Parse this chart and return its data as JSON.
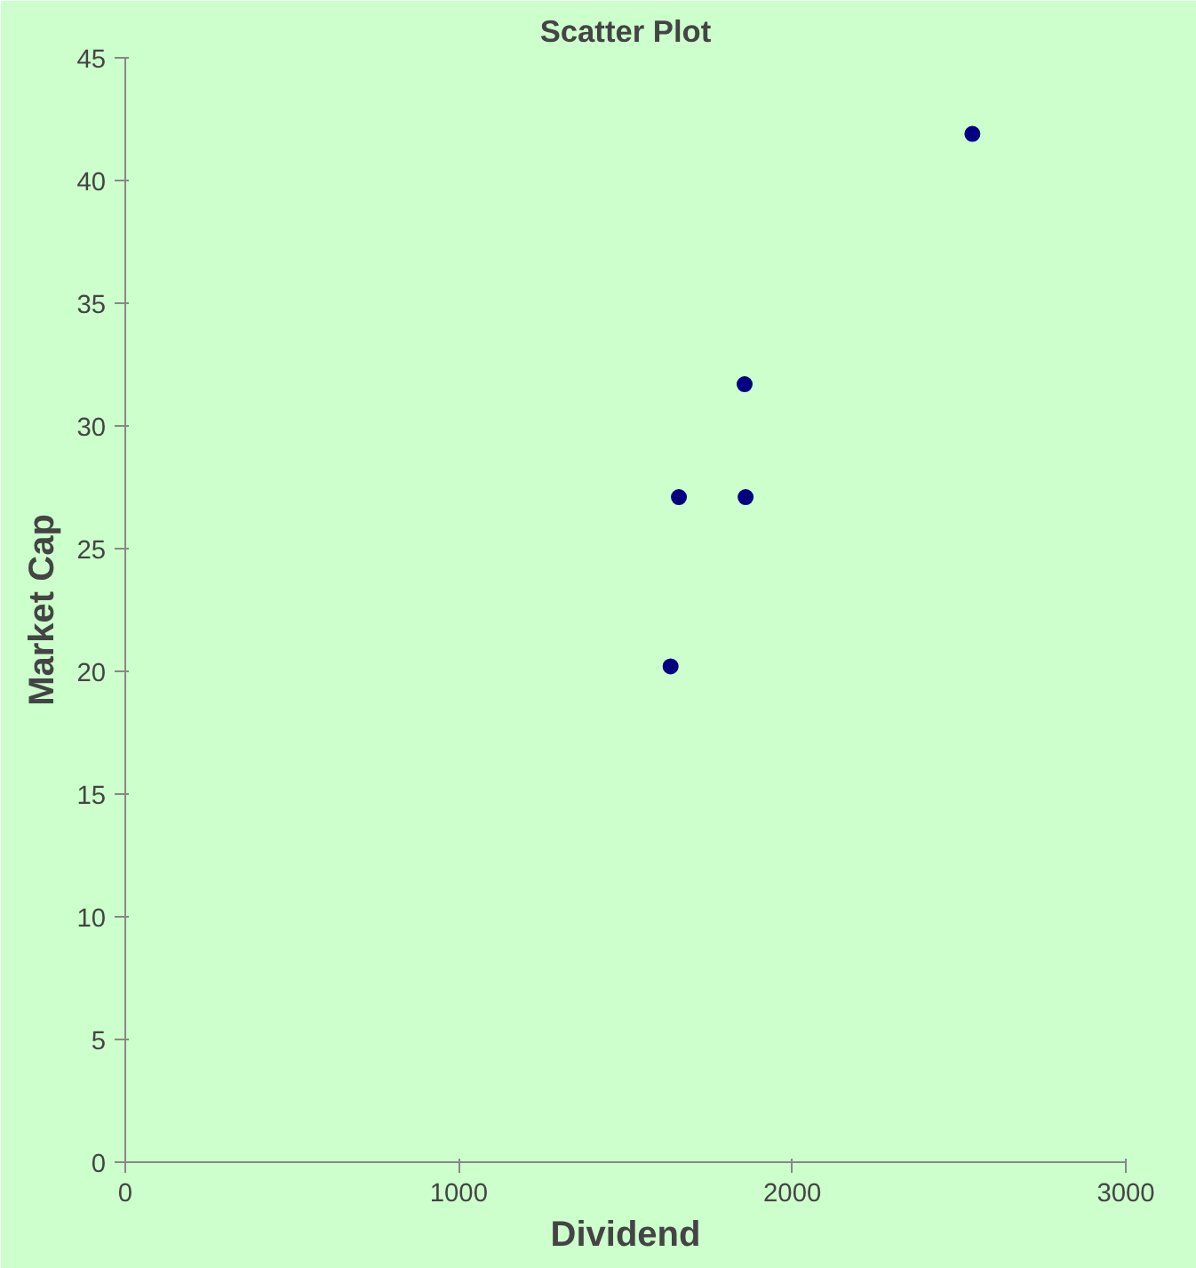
{
  "chart_data": {
    "type": "scatter",
    "title": "Scatter Plot",
    "xlabel": "Dividend",
    "ylabel": "Market Cap",
    "x": [
      1635,
      1660,
      1860,
      1857,
      2540
    ],
    "series": [
      {
        "color": "#000080",
        "values": [
          20.2,
          27.1,
          27.1,
          31.7,
          41.9
        ]
      }
    ],
    "xlim": [
      0,
      3000
    ],
    "xticks": [
      0,
      1000,
      2000,
      3000
    ],
    "ylim": [
      0,
      45
    ],
    "yticks": [
      0,
      5,
      10,
      15,
      20,
      25,
      30,
      35,
      40,
      45
    ],
    "grid": false,
    "marker": "circle"
  }
}
